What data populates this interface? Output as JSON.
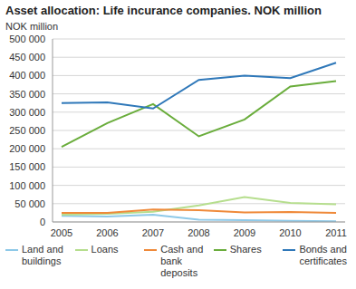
{
  "chart_data": {
    "type": "line",
    "title": "Asset allocation: Life incurance companies. NOK million",
    "y_label": "NOK million",
    "categories": [
      "2005",
      "2006",
      "2007",
      "2008",
      "2009",
      "2010",
      "2011"
    ],
    "series": [
      {
        "name": "Land and buildings",
        "color": "#8ec9e8",
        "values": [
          17000,
          15000,
          20000,
          6000,
          5000,
          3000,
          2000
        ]
      },
      {
        "name": "Loans",
        "color": "#b6de8e",
        "values": [
          20000,
          22000,
          28000,
          45000,
          68000,
          52000,
          48000
        ]
      },
      {
        "name": "Cash and bank deposits",
        "color": "#ef8a3a",
        "values": [
          25000,
          25000,
          34000,
          32000,
          26000,
          27000,
          25000
        ]
      },
      {
        "name": "Shares",
        "color": "#6aad3c",
        "values": [
          205000,
          270000,
          322000,
          234000,
          280000,
          370000,
          385000
        ]
      },
      {
        "name": "Bonds and certificates",
        "color": "#2f78b9",
        "values": [
          325000,
          327000,
          310000,
          388000,
          400000,
          393000,
          435000
        ]
      }
    ],
    "ylim": [
      0,
      500000
    ],
    "yticks": [
      0,
      {
        "value": 50000,
        "label": "50 000"
      },
      {
        "value": 100000,
        "label": "100 000"
      },
      {
        "value": 150000,
        "label": "150 000"
      },
      {
        "value": 200000,
        "label": "200 000"
      },
      {
        "value": 250000,
        "label": "250 000"
      },
      {
        "value": 300000,
        "label": "300 000"
      },
      {
        "value": 350000,
        "label": "350 000"
      },
      {
        "value": 400000,
        "label": "400 000"
      },
      {
        "value": 450000,
        "label": "450 000"
      },
      {
        "value": 500000,
        "label": "500 000"
      }
    ],
    "grid": true,
    "legend": "bottom"
  }
}
